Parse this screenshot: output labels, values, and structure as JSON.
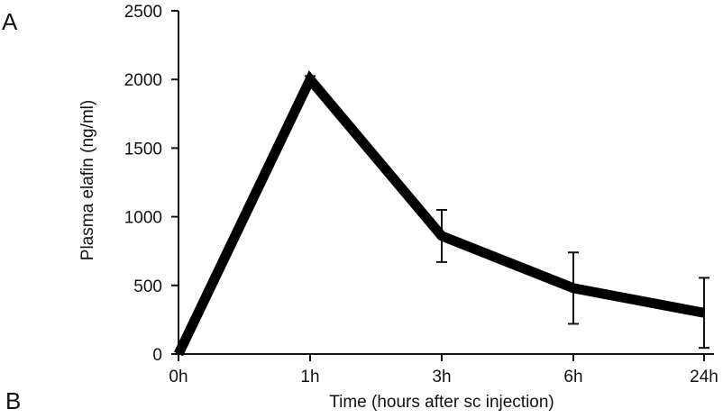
{
  "panel_labels": {
    "top": "A",
    "bottom": "B"
  },
  "chart_data": {
    "type": "line",
    "categories": [
      "0h",
      "1h",
      "3h",
      "6h",
      "24h"
    ],
    "series": [
      {
        "values": [
          0,
          2000,
          860,
          480,
          300
        ],
        "error": [
          0,
          25,
          190,
          260,
          255
        ]
      }
    ],
    "xlabel": "Time (hours  after sc injection)",
    "ylabel": "Plasma elafin  (ng/ml)",
    "ylim": [
      0,
      2500
    ],
    "yticks": [
      0,
      500,
      1000,
      1500,
      2000,
      2500
    ],
    "grid": false,
    "series_color": "#000000"
  }
}
